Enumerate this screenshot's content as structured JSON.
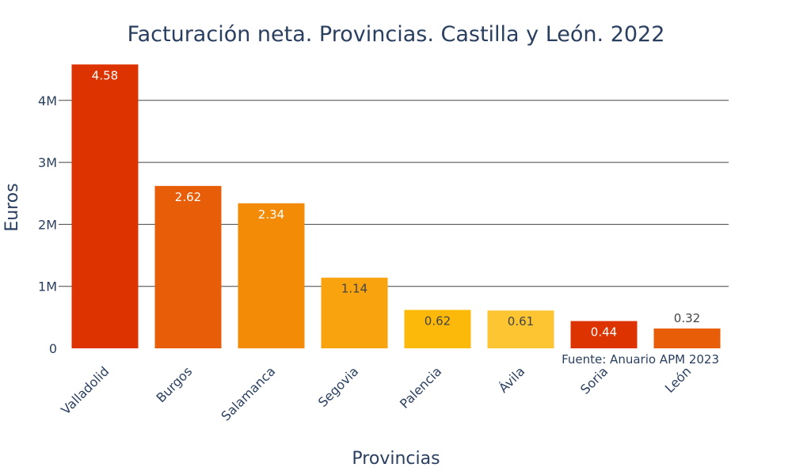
{
  "chart_data": {
    "type": "bar",
    "title": "Facturación neta. Provincias. Castilla y León. 2022",
    "xlabel": "Provincias",
    "ylabel": "Euros",
    "categories": [
      "Valladolid",
      "Burgos",
      "Salamanca",
      "Segovia",
      "Palencia",
      "Ávila",
      "Soria",
      "León"
    ],
    "values": [
      4580000,
      2620000,
      2340000,
      1140000,
      620000,
      610000,
      440000,
      320000
    ],
    "data_labels": [
      "4.58",
      "2.62",
      "2.34",
      "1.14",
      "0.62",
      "0.61",
      "0.44",
      "0.32"
    ],
    "ylim": [
      0,
      4700000
    ],
    "yticks": [
      0,
      1000000,
      2000000,
      3000000,
      4000000
    ],
    "ytick_labels": [
      "0",
      "1M",
      "2M",
      "3M",
      "4M"
    ],
    "colors": [
      "#dd3300",
      "#e85e08",
      "#f38b07",
      "#f9a30e",
      "#fdb90a",
      "#fec533",
      "#dd3300",
      "#e85e08"
    ],
    "label_colors": [
      "#ffffff",
      "#ffffff",
      "#ffffff",
      "#444444",
      "#444444",
      "#444444",
      "#ffffff",
      "#444444"
    ],
    "grid": true,
    "annotation": "Fuente: Anuario APM 2023"
  }
}
